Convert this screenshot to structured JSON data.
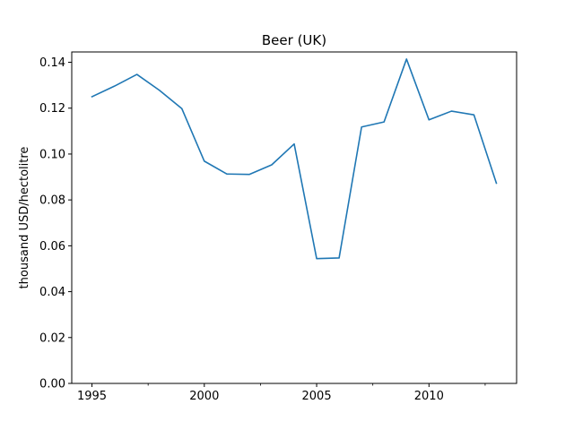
{
  "chart_data": {
    "type": "line",
    "title": "Beer (UK)",
    "xlabel": "",
    "ylabel": "thousand USD/hectolitre",
    "xlim": [
      1994.1,
      2013.9
    ],
    "ylim": [
      0.0,
      0.1445
    ],
    "x_major_ticks": [
      1995,
      2000,
      2005,
      2010
    ],
    "x_minor_ticks": [
      1997.5,
      2002.5,
      2007.5,
      2012.5
    ],
    "y_ticks": [
      0.0,
      0.02,
      0.04,
      0.06,
      0.08,
      0.1,
      0.12,
      0.14
    ],
    "y_tick_labels": [
      "0.00",
      "0.02",
      "0.04",
      "0.06",
      "0.08",
      "0.10",
      "0.12",
      "0.14"
    ],
    "grid": false,
    "line_color": "#1f77b4",
    "series": [
      {
        "x": [
          1995,
          1996,
          1997,
          1998,
          1999,
          2000,
          2001,
          2002,
          2003,
          2004,
          2005,
          2006,
          2007,
          2008,
          2009,
          2010,
          2011,
          2012,
          2013
        ],
        "values": [
          0.125,
          0.1296,
          0.1347,
          0.1278,
          0.1198,
          0.0969,
          0.0913,
          0.0911,
          0.0953,
          0.1044,
          0.0544,
          0.0547,
          0.1118,
          0.114,
          0.1414,
          0.1149,
          0.1187,
          0.1171,
          0.0873
        ]
      }
    ]
  }
}
